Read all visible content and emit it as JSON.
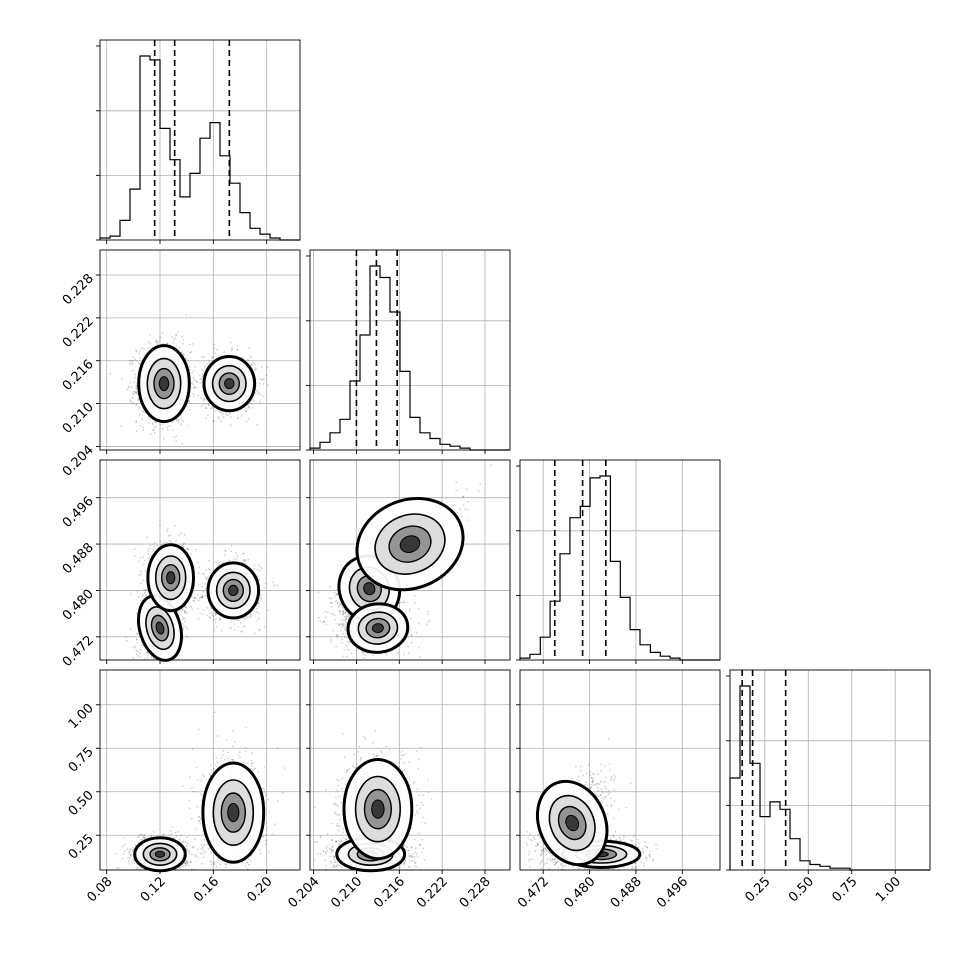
{
  "chart_data": {
    "type": "corner",
    "parameters": [
      {
        "range": [
          0.075,
          0.225
        ],
        "ticks": [
          "0.08",
          "0.12",
          "0.16",
          "0.20"
        ],
        "tick_values": [
          0.08,
          0.12,
          0.16,
          0.2
        ],
        "quantiles": [
          0.116,
          0.131,
          0.172
        ]
      },
      {
        "range": [
          0.2035,
          0.2315
        ],
        "ticks": [
          "0.204",
          "0.210",
          "0.216",
          "0.222",
          "0.228"
        ],
        "tick_values": [
          0.204,
          0.21,
          0.216,
          0.222,
          0.228
        ],
        "quantiles": [
          0.21,
          0.2128,
          0.2157
        ]
      },
      {
        "range": [
          0.468,
          0.5025
        ],
        "ticks": [
          "0.472",
          "0.480",
          "0.488",
          "0.496"
        ],
        "tick_values": [
          0.472,
          0.48,
          0.488,
          0.496
        ],
        "quantiles": [
          0.474,
          0.4788,
          0.4828
        ]
      },
      {
        "range": [
          0.05,
          1.2
        ],
        "ticks": [
          "0.25",
          "0.50",
          "0.75",
          "1.00"
        ],
        "tick_values": [
          0.25,
          0.5,
          0.75,
          1.0
        ],
        "quantiles": [
          0.12,
          0.18,
          0.37
        ]
      }
    ],
    "histograms": [
      {
        "param": 0,
        "bin_edges": [
          0.075,
          0.0825,
          0.09,
          0.0975,
          0.105,
          0.1125,
          0.12,
          0.1275,
          0.135,
          0.1425,
          0.15,
          0.1575,
          0.165,
          0.1725,
          0.18,
          0.1875,
          0.195,
          0.2025,
          0.21,
          0.2175,
          0.225
        ],
        "counts": [
          0.01,
          0.02,
          0.1,
          0.26,
          0.94,
          0.92,
          0.57,
          0.41,
          0.22,
          0.34,
          0.52,
          0.6,
          0.43,
          0.29,
          0.14,
          0.06,
          0.03,
          0.01,
          0.0,
          0.0
        ]
      },
      {
        "param": 1,
        "bin_edges": [
          0.2035,
          0.2049,
          0.2063,
          0.2077,
          0.2091,
          0.2105,
          0.2119,
          0.2133,
          0.2147,
          0.2161,
          0.2175,
          0.2189,
          0.2203,
          0.2217,
          0.2231,
          0.2245,
          0.2259,
          0.2273,
          0.2287,
          0.2301,
          0.2315
        ],
        "counts": [
          0.01,
          0.04,
          0.09,
          0.16,
          0.36,
          0.6,
          0.96,
          0.9,
          0.72,
          0.41,
          0.17,
          0.09,
          0.06,
          0.03,
          0.02,
          0.01,
          0.0,
          0.0,
          0.0,
          0.0
        ]
      },
      {
        "param": 2,
        "bin_edges": [
          0.468,
          0.4697,
          0.4715,
          0.4732,
          0.4749,
          0.4766,
          0.4784,
          0.4801,
          0.4818,
          0.4836,
          0.4853,
          0.487,
          0.4887,
          0.4905,
          0.4922,
          0.4939,
          0.4956,
          0.4974,
          0.4991,
          0.5008,
          0.5025
        ],
        "counts": [
          0.01,
          0.03,
          0.12,
          0.31,
          0.56,
          0.75,
          0.81,
          0.96,
          0.97,
          0.52,
          0.33,
          0.16,
          0.08,
          0.04,
          0.02,
          0.01,
          0.0,
          0.0,
          0.0,
          0.0
        ]
      },
      {
        "param": 3,
        "bin_edges": [
          0.05,
          0.1075,
          0.165,
          0.2225,
          0.28,
          0.3375,
          0.395,
          0.4525,
          0.51,
          0.5675,
          0.625,
          0.6825,
          0.74,
          0.7975,
          0.855,
          0.9125,
          0.97,
          1.0275,
          1.085,
          1.1425,
          1.2
        ],
        "counts": [
          0.5,
          1.0,
          0.58,
          0.29,
          0.37,
          0.33,
          0.17,
          0.05,
          0.03,
          0.02,
          0.01,
          0.01,
          0.0,
          0.0,
          0.0,
          0.0,
          0.0,
          0.0,
          0.0,
          0.0
        ]
      }
    ],
    "scatter_panels": [
      {
        "x_param": 0,
        "y_param": 1,
        "clusters": [
          {
            "x": 0.123,
            "y": 0.2128,
            "sx": 0.01,
            "sy": 0.0028,
            "n": 1300,
            "rho": 0.0
          },
          {
            "x": 0.172,
            "y": 0.2128,
            "sx": 0.01,
            "sy": 0.002,
            "n": 800,
            "rho": 0.0
          }
        ]
      },
      {
        "x_param": 0,
        "y_param": 2,
        "clusters": [
          {
            "x": 0.12,
            "y": 0.4735,
            "sx": 0.008,
            "sy": 0.003,
            "n": 800,
            "rho": 0.3
          },
          {
            "x": 0.128,
            "y": 0.4822,
            "sx": 0.009,
            "sy": 0.003,
            "n": 700,
            "rho": 0.0
          },
          {
            "x": 0.175,
            "y": 0.48,
            "sx": 0.01,
            "sy": 0.0025,
            "n": 900,
            "rho": 0.0
          }
        ]
      },
      {
        "x_param": 1,
        "y_param": 2,
        "clusters": [
          {
            "x": 0.2118,
            "y": 0.4803,
            "sx": 0.0022,
            "sy": 0.003,
            "n": 1200,
            "rho": 0.6
          },
          {
            "x": 0.213,
            "y": 0.4735,
            "sx": 0.0022,
            "sy": 0.0022,
            "n": 800,
            "rho": 0.2
          },
          {
            "x": 0.2175,
            "y": 0.488,
            "sx": 0.004,
            "sy": 0.004,
            "n": 300,
            "rho": 0.9
          }
        ]
      },
      {
        "x_param": 0,
        "y_param": 3,
        "clusters": [
          {
            "x": 0.12,
            "y": 0.14,
            "sx": 0.01,
            "sy": 0.05,
            "n": 1200,
            "rho": 0.0
          },
          {
            "x": 0.175,
            "y": 0.38,
            "sx": 0.012,
            "sy": 0.15,
            "n": 900,
            "rho": 0.0
          }
        ]
      },
      {
        "x_param": 1,
        "y_param": 3,
        "clusters": [
          {
            "x": 0.212,
            "y": 0.14,
            "sx": 0.0025,
            "sy": 0.05,
            "n": 1200,
            "rho": 0.0
          },
          {
            "x": 0.213,
            "y": 0.4,
            "sx": 0.0025,
            "sy": 0.15,
            "n": 900,
            "rho": 0.0
          }
        ]
      },
      {
        "x_param": 2,
        "y_param": 3,
        "clusters": [
          {
            "x": 0.482,
            "y": 0.14,
            "sx": 0.0035,
            "sy": 0.04,
            "n": 1100,
            "rho": 0.0
          },
          {
            "x": 0.477,
            "y": 0.32,
            "sx": 0.003,
            "sy": 0.13,
            "n": 1000,
            "rho": 0.6
          }
        ]
      }
    ],
    "grid": true,
    "colors": {
      "line": "#000000",
      "grid": "#b0b0b0",
      "points": "#000000"
    }
  }
}
